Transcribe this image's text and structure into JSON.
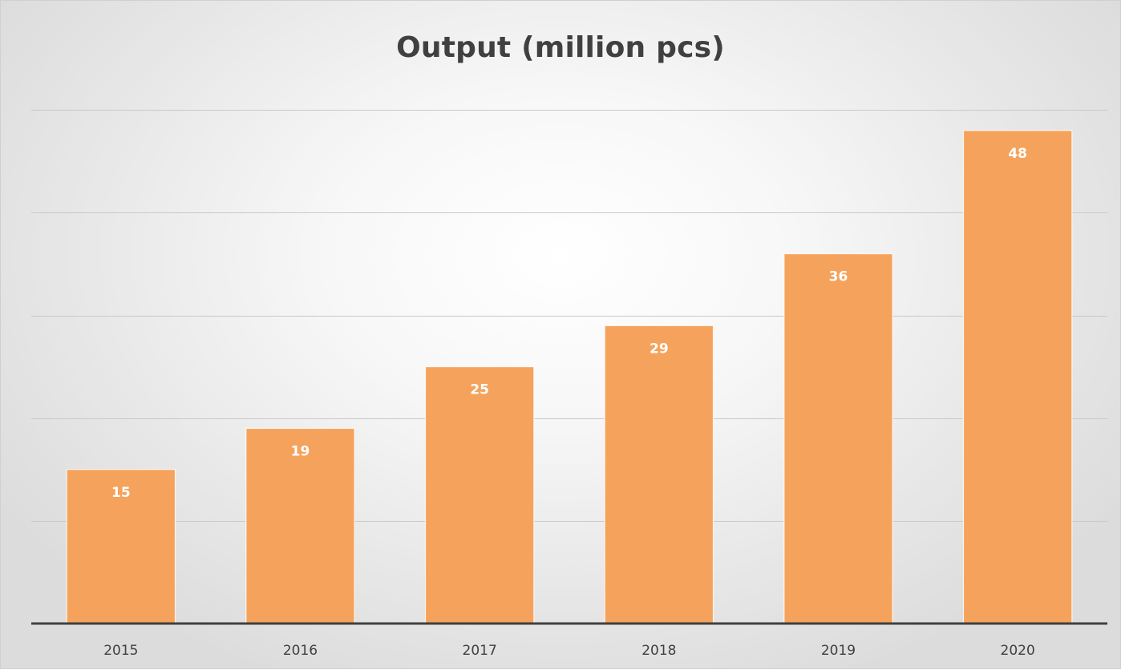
{
  "chart_data": {
    "type": "bar",
    "title": "Output (million pcs)",
    "categories": [
      "2015",
      "2016",
      "2017",
      "2018",
      "2019",
      "2020"
    ],
    "values": [
      15,
      19,
      25,
      29,
      36,
      48
    ],
    "data_labels": [
      "15",
      "19",
      "25",
      "29",
      "36",
      "48"
    ],
    "ylim": [
      0,
      60
    ],
    "y_gridline_step": 10,
    "y_axis_visible": false,
    "grid": true,
    "legend": "none",
    "xlabel": "",
    "ylabel": "",
    "colors": {
      "bar": "#f5a35c",
      "axis": "#404040",
      "gridline": "#c9c9c9",
      "title": "#404040",
      "data_label": "#ffffff"
    }
  }
}
